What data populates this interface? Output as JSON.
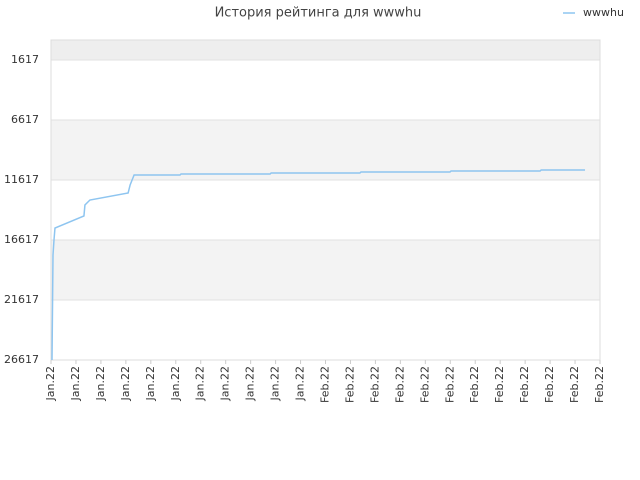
{
  "chart_data": {
    "type": "line",
    "title": "История рейтинга для wwwhu",
    "xlim": [
      0,
      22
    ],
    "xticks": [
      {
        "value": 0,
        "label": "Jan.22"
      },
      {
        "value": 1,
        "label": "Jan.22"
      },
      {
        "value": 2,
        "label": "Jan.22"
      },
      {
        "value": 3,
        "label": "Jan.22"
      },
      {
        "value": 4,
        "label": "Jan.22"
      },
      {
        "value": 5,
        "label": "Jan.22"
      },
      {
        "value": 6,
        "label": "Jan.22"
      },
      {
        "value": 7,
        "label": "Jan.22"
      },
      {
        "value": 8,
        "label": "Jan.22"
      },
      {
        "value": 9,
        "label": "Jan.22"
      },
      {
        "value": 10,
        "label": "Jan.22"
      },
      {
        "value": 11,
        "label": "Feb.22"
      },
      {
        "value": 12,
        "label": "Feb.22"
      },
      {
        "value": 13,
        "label": "Feb.22"
      },
      {
        "value": 14,
        "label": "Feb.22"
      },
      {
        "value": 15,
        "label": "Feb.22"
      },
      {
        "value": 16,
        "label": "Feb.22"
      },
      {
        "value": 17,
        "label": "Feb.22"
      },
      {
        "value": 18,
        "label": "Feb.22"
      },
      {
        "value": 19,
        "label": "Feb.22"
      },
      {
        "value": 20,
        "label": "Feb.22"
      },
      {
        "value": 21,
        "label": "Feb.22"
      },
      {
        "value": 22,
        "label": "Feb.22"
      }
    ],
    "ylim": [
      26617,
      -50
    ],
    "yticks": [
      1617,
      6617,
      11617,
      16617,
      21617,
      26617
    ],
    "grid": true,
    "bands": true,
    "legend": "top-right",
    "x": [
      0.04,
      0.08,
      0.12,
      0.16,
      1.32,
      1.36,
      1.56,
      3.09,
      3.17,
      3.33,
      5.17,
      5.21,
      8.78,
      8.82,
      12.38,
      12.42,
      15.99,
      16.03,
      19.6,
      19.64,
      21.4
    ],
    "series": [
      {
        "name": "wwwhu",
        "color": "#8ec5f0",
        "values": [
          26617,
          17867,
          16617,
          15617,
          14617,
          13700,
          13284,
          12700,
          12034,
          11200,
          11200,
          11117,
          11117,
          11034,
          11034,
          10950,
          10950,
          10867,
          10867,
          10784,
          10784
        ]
      }
    ]
  }
}
